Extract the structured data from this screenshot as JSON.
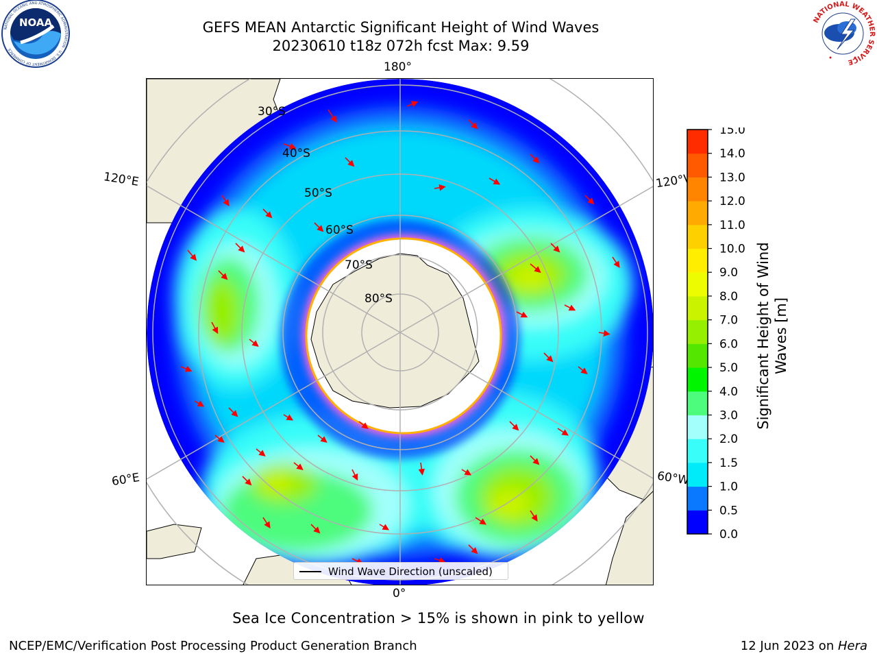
{
  "header": {
    "title_line1": "GEFS MEAN Antarctic Significant Height of Wind Waves",
    "title_line2": "20230610 t18z 072h fcst   Max: 9.59"
  },
  "logos": {
    "left": {
      "name": "noaa-logo",
      "text": "NOAA",
      "ring_text": "NATIONAL OCEANIC AND ATMOSPHERIC ADMINISTRATION · U.S. DEPARTMENT OF COMMERCE"
    },
    "right": {
      "name": "national-weather-service-logo",
      "ring_text": "NATIONAL WEATHER SERVICE"
    }
  },
  "map": {
    "projection": "south-polar-stereographic",
    "longitude_labels": {
      "top": "180°",
      "bottom": "0°",
      "upper_left": "120°E",
      "upper_right": "120°W",
      "lower_left": "60°E",
      "lower_right": "60°W"
    },
    "latitude_labels": [
      "30°S",
      "40°S",
      "50°S",
      "60°S",
      "70°S",
      "80°S"
    ],
    "legend": "Wind Wave Direction (unscaled)",
    "colors": {
      "land": "#efedd9",
      "ocean_low": "#0000ff",
      "ice": "#ff00ff",
      "arrow": "#ff0000",
      "grid": "#b0b0b0"
    }
  },
  "colorbar": {
    "label_line1": "Significant Height of Wind",
    "label_line2": "Waves [m]",
    "ticks": [
      "0.0",
      "0.5",
      "1.0",
      "1.5",
      "2.0",
      "3.0",
      "4.0",
      "5.0",
      "6.0",
      "7.0",
      "8.0",
      "9.0",
      "10.0",
      "11.0",
      "12.0",
      "13.0",
      "14.0",
      "15.0"
    ],
    "colors": [
      "#0000ff",
      "#0a78ff",
      "#00ebfa",
      "#38fdf8",
      "#a2fffc",
      "#4dfb7d",
      "#00f500",
      "#55e600",
      "#96ef00",
      "#caf300",
      "#eefc00",
      "#ffee00",
      "#ffd000",
      "#ffaa00",
      "#ff8400",
      "#ff5a00",
      "#ff2c00"
    ]
  },
  "footer": {
    "note": "Sea Ice Concentration > 15% is shown in pink to yellow",
    "left": "NCEP/EMC/Verification Post Processing Product Generation Branch",
    "right_prefix": "12 Jun 2023 on ",
    "right_machine": "Hera"
  }
}
